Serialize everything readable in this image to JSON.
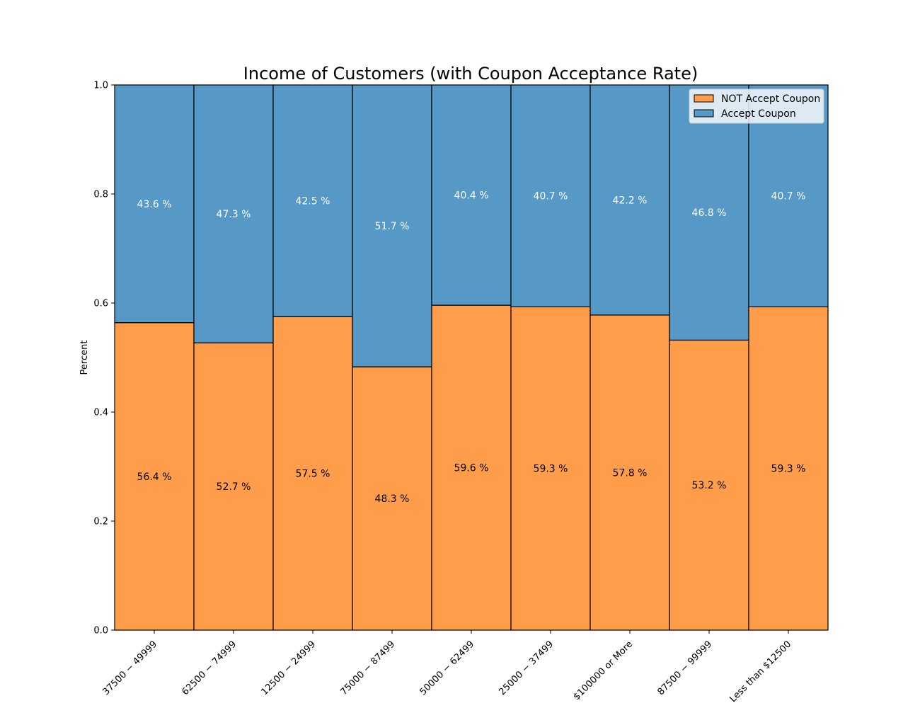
{
  "chart_data": {
    "type": "bar",
    "stacked": true,
    "normalized": true,
    "title": "Income of Customers (with Coupon Acceptance Rate)",
    "xlabel": "",
    "ylabel": "Percent",
    "ylim": [
      0,
      1
    ],
    "yticks": [
      "0.0",
      "0.2",
      "0.4",
      "0.6",
      "0.8",
      "1.0"
    ],
    "grid": false,
    "legend_position": "top-right",
    "categories": [
      "$37500 - $49999",
      "$62500 - $74999",
      "$12500 - $24999",
      "$75000 - $87499",
      "$50000 - $62499",
      "$25000 - $37499",
      "$100000 or More",
      "$87500 - $99999",
      "Less than $12500"
    ],
    "category_display": [
      "37500 − 49999",
      "62500 − 74999",
      "12500 − 24999",
      "75000 − 87499",
      "50000 − 62499",
      "25000 − 37499",
      "$100000 or More",
      "87500 − 99999",
      "Less than $12500"
    ],
    "series": [
      {
        "name": "NOT Accept Coupon",
        "color": "#ff9d4a",
        "label_color": "#000000",
        "values": [
          0.564,
          0.527,
          0.575,
          0.483,
          0.596,
          0.593,
          0.578,
          0.532,
          0.593
        ],
        "labels": [
          "56.4 %",
          "52.7 %",
          "57.5 %",
          "48.3 %",
          "59.6 %",
          "59.3 %",
          "57.8 %",
          "53.2 %",
          "59.3 %"
        ]
      },
      {
        "name": "Accept Coupon",
        "color": "#5698c6",
        "label_color": "#ffffff",
        "values": [
          0.436,
          0.473,
          0.425,
          0.517,
          0.404,
          0.407,
          0.422,
          0.468,
          0.407
        ],
        "labels": [
          "43.6 %",
          "47.3 %",
          "42.5 %",
          "51.7 %",
          "40.4 %",
          "40.7 %",
          "42.2 %",
          "46.8 %",
          "40.7 %"
        ]
      }
    ]
  }
}
